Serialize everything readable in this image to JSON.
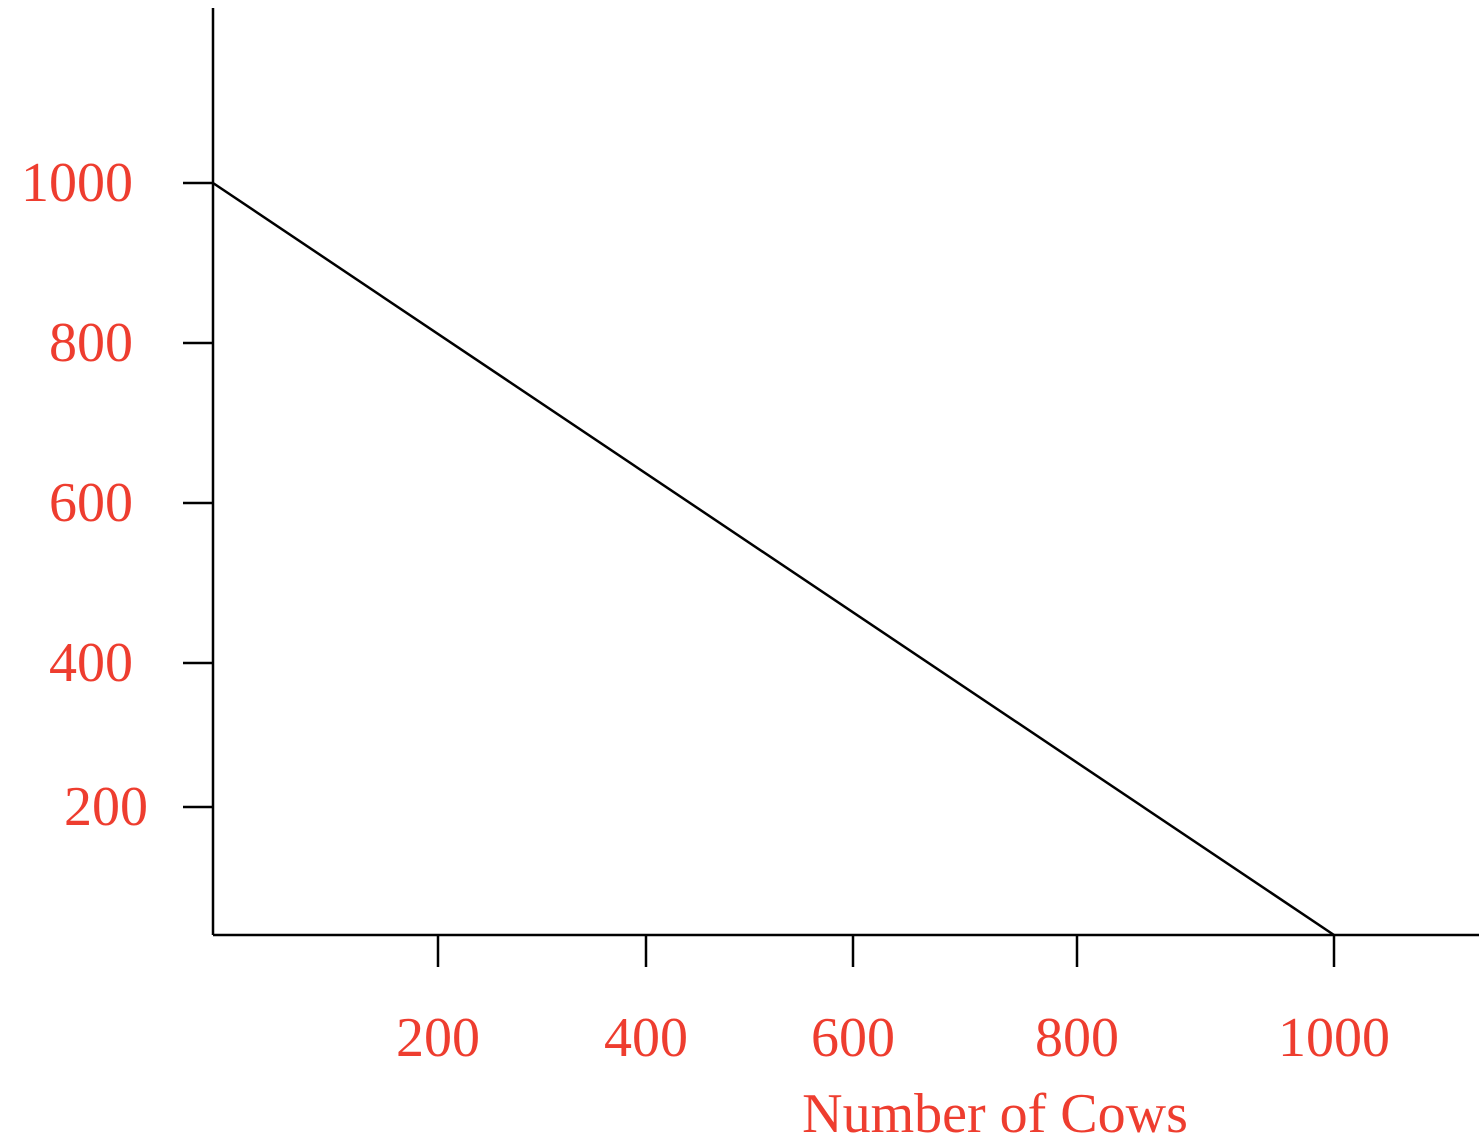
{
  "chart_data": {
    "type": "line",
    "title": "",
    "xlabel": "Number of Cows",
    "ylabel": "",
    "xlim": [
      0,
      1000
    ],
    "ylim": [
      0,
      1000
    ],
    "x_ticks": [
      "200",
      "400",
      "600",
      "800",
      "1000"
    ],
    "y_ticks": [
      "200",
      "400",
      "600",
      "800",
      "1000"
    ],
    "grid": false,
    "legend": "none",
    "series": [
      {
        "x": [
          0,
          1000
        ],
        "values": [
          1000,
          0
        ]
      }
    ]
  },
  "colors": {
    "label_color": "#ee3d2f",
    "line_color": "#000000",
    "axis_color": "#000000"
  }
}
